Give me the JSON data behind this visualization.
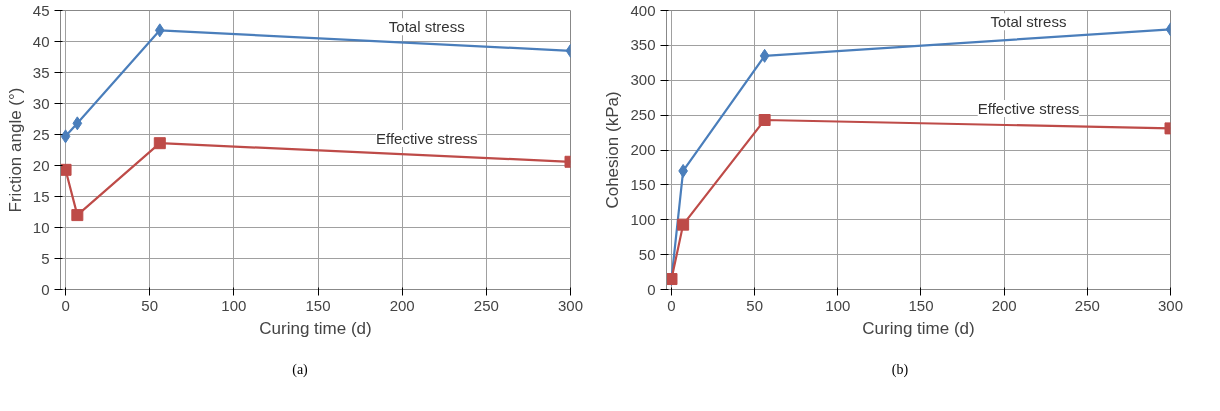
{
  "chart_data": [
    {
      "type": "line",
      "xlabel": "Curing time (d)",
      "ylabel": "Friction angle (°)",
      "x": [
        0,
        7,
        56,
        300
      ],
      "xlim": [
        -3,
        300
      ],
      "xticks": [
        0,
        50,
        100,
        150,
        200,
        250,
        300
      ],
      "ylim": [
        0,
        45
      ],
      "yticks": [
        0,
        5,
        10,
        15,
        20,
        25,
        30,
        35,
        40,
        45
      ],
      "grid": true,
      "line_style": "solid",
      "annotations": [
        "(a)"
      ],
      "series": [
        {
          "name": "Total stress",
          "color": "#4a7ebb",
          "marker": "diamond",
          "values": [
            24.7,
            26.8,
            41.8,
            38.5
          ]
        },
        {
          "name": "Effective stress",
          "color": "#be4b48",
          "marker": "square",
          "values": [
            19.3,
            12.0,
            23.6,
            20.6
          ]
        }
      ]
    },
    {
      "type": "line",
      "xlabel": "Curing time (d)",
      "ylabel": "Cohesion (kPa)",
      "x": [
        0,
        7,
        56,
        300
      ],
      "xlim": [
        -3,
        300
      ],
      "xticks": [
        0,
        50,
        100,
        150,
        200,
        250,
        300
      ],
      "ylim": [
        0,
        400
      ],
      "yticks": [
        0,
        50,
        100,
        150,
        200,
        250,
        300,
        350,
        400
      ],
      "grid": true,
      "line_style": "solid",
      "annotations": [
        "(b)"
      ],
      "series": [
        {
          "name": "Total stress",
          "color": "#4a7ebb",
          "marker": "diamond",
          "values": [
            15,
            170,
            335,
            373
          ]
        },
        {
          "name": "Effective stress",
          "color": "#be4b48",
          "marker": "square",
          "values": [
            15,
            93,
            243,
            231
          ]
        }
      ]
    }
  ]
}
